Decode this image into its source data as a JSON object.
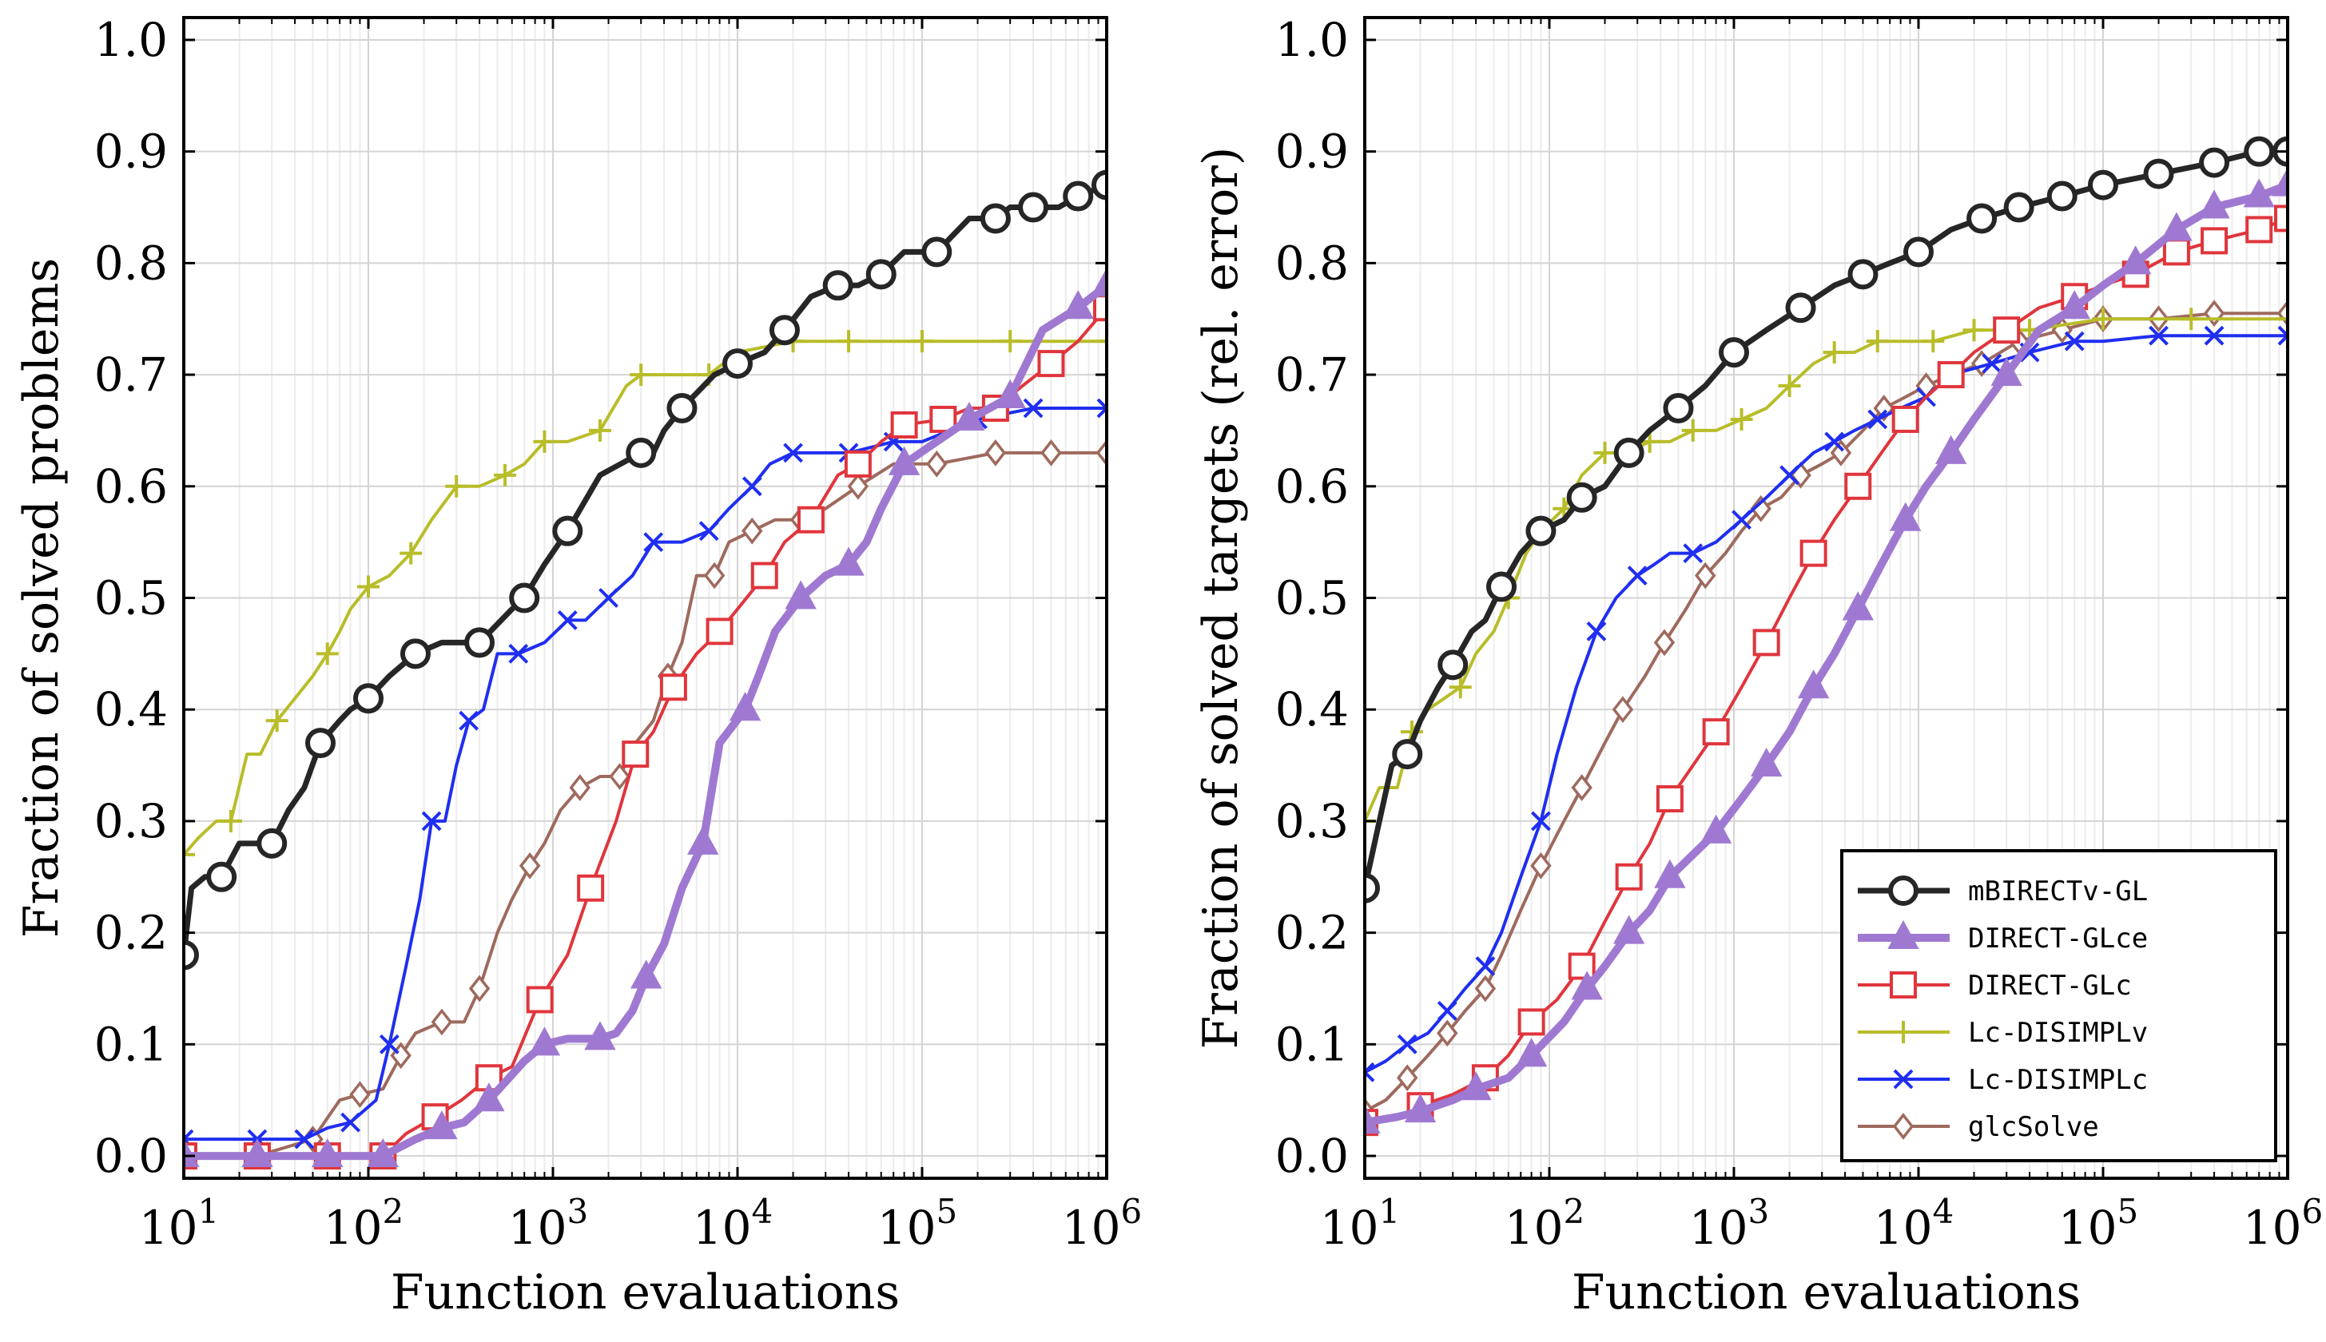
{
  "chart_data": [
    {
      "type": "line",
      "xlabel": "Function evaluations",
      "ylabel": "Fraction of solved problems",
      "xscale": "log",
      "xlim": [
        10,
        1000000
      ],
      "ylim": [
        -0.02,
        1.02
      ],
      "yticks": [
        "0.0",
        "0.1",
        "0.2",
        "0.3",
        "0.4",
        "0.5",
        "0.6",
        "0.7",
        "0.8",
        "0.9",
        "1.0"
      ],
      "xticks": [
        {
          "base": "10",
          "exp": "1"
        },
        {
          "base": "10",
          "exp": "2"
        },
        {
          "base": "10",
          "exp": "3"
        },
        {
          "base": "10",
          "exp": "4"
        },
        {
          "base": "10",
          "exp": "5"
        },
        {
          "base": "10",
          "exp": "6"
        }
      ],
      "grid": true,
      "series": [
        {
          "name": "mBIRECTv-GL",
          "x": [
            10,
            11,
            13,
            16,
            20,
            24,
            30,
            37,
            45,
            55,
            70,
            80,
            100,
            130,
            180,
            250,
            400,
            600,
            700,
            900,
            1200,
            1800,
            3000,
            3500,
            4000,
            5000,
            7500,
            10000,
            14000,
            18000,
            25000,
            35000,
            45000,
            60000,
            80000,
            120000,
            180000,
            250000,
            300000,
            400000,
            550000,
            700000,
            1000000
          ],
          "y": [
            0.18,
            0.24,
            0.25,
            0.25,
            0.28,
            0.28,
            0.28,
            0.31,
            0.33,
            0.37,
            0.39,
            0.4,
            0.41,
            0.43,
            0.45,
            0.46,
            0.46,
            0.49,
            0.5,
            0.53,
            0.56,
            0.61,
            0.63,
            0.63,
            0.65,
            0.67,
            0.7,
            0.71,
            0.72,
            0.74,
            0.77,
            0.78,
            0.78,
            0.79,
            0.81,
            0.81,
            0.84,
            0.84,
            0.85,
            0.85,
            0.85,
            0.86,
            0.87
          ]
        },
        {
          "name": "DIRECT-GLce",
          "x": [
            10,
            25,
            60,
            120,
            180,
            250,
            330,
            450,
            700,
            900,
            1200,
            1800,
            2200,
            2700,
            3200,
            4000,
            5000,
            6500,
            8000,
            11000,
            13000,
            16000,
            22000,
            30000,
            40000,
            50000,
            60000,
            80000,
            120000,
            180000,
            300000,
            450000,
            700000,
            1000000
          ],
          "y": [
            0.0,
            0.0,
            0.0,
            0.0,
            0.015,
            0.025,
            0.03,
            0.05,
            0.085,
            0.1,
            0.105,
            0.105,
            0.11,
            0.13,
            0.16,
            0.19,
            0.24,
            0.28,
            0.37,
            0.4,
            0.43,
            0.47,
            0.5,
            0.52,
            0.53,
            0.55,
            0.58,
            0.62,
            0.64,
            0.66,
            0.68,
            0.74,
            0.76,
            0.78
          ]
        },
        {
          "name": "DIRECT-GLc",
          "x": [
            10,
            25,
            60,
            120,
            160,
            230,
            320,
            450,
            600,
            850,
            1200,
            1600,
            2200,
            2800,
            3500,
            4500,
            6000,
            8000,
            10000,
            14000,
            18000,
            25000,
            35000,
            45000,
            60000,
            80000,
            130000,
            180000,
            250000,
            350000,
            500000,
            700000,
            1000000
          ],
          "y": [
            0.0,
            0.0,
            0.0,
            0.0,
            0.02,
            0.035,
            0.05,
            0.07,
            0.08,
            0.14,
            0.18,
            0.24,
            0.3,
            0.36,
            0.38,
            0.42,
            0.45,
            0.47,
            0.49,
            0.52,
            0.55,
            0.57,
            0.61,
            0.62,
            0.64,
            0.655,
            0.66,
            0.67,
            0.67,
            0.69,
            0.71,
            0.73,
            0.76
          ]
        },
        {
          "name": "Lc-DISIMPLv",
          "x": [
            10,
            12,
            15,
            18,
            22,
            26,
            32,
            40,
            50,
            60,
            70,
            80,
            100,
            130,
            170,
            220,
            300,
            400,
            550,
            700,
            900,
            1200,
            1800,
            2500,
            3000,
            4500,
            7000,
            10000,
            20000,
            40000,
            100000,
            300000,
            1000000
          ],
          "y": [
            0.27,
            0.285,
            0.3,
            0.3,
            0.36,
            0.36,
            0.39,
            0.41,
            0.43,
            0.45,
            0.47,
            0.49,
            0.51,
            0.52,
            0.54,
            0.57,
            0.6,
            0.6,
            0.61,
            0.62,
            0.64,
            0.64,
            0.65,
            0.69,
            0.7,
            0.7,
            0.7,
            0.72,
            0.73,
            0.73,
            0.73,
            0.73,
            0.73
          ]
        },
        {
          "name": "Lc-DISIMPLc",
          "x": [
            10,
            25,
            45,
            60,
            80,
            110,
            130,
            160,
            190,
            220,
            260,
            300,
            350,
            420,
            500,
            650,
            900,
            1200,
            1500,
            2000,
            2700,
            3500,
            5000,
            7000,
            9000,
            12000,
            15000,
            20000,
            40000,
            70000,
            100000,
            200000,
            400000,
            1000000
          ],
          "y": [
            0.015,
            0.015,
            0.015,
            0.025,
            0.03,
            0.05,
            0.1,
            0.17,
            0.23,
            0.3,
            0.3,
            0.35,
            0.39,
            0.4,
            0.45,
            0.45,
            0.46,
            0.48,
            0.48,
            0.5,
            0.52,
            0.55,
            0.55,
            0.56,
            0.58,
            0.6,
            0.62,
            0.63,
            0.63,
            0.64,
            0.64,
            0.66,
            0.67,
            0.67
          ]
        },
        {
          "name": "glcSolve",
          "x": [
            10,
            25,
            50,
            70,
            90,
            120,
            150,
            180,
            250,
            330,
            400,
            500,
            600,
            750,
            900,
            1100,
            1400,
            1800,
            2300,
            2800,
            3500,
            4200,
            5000,
            6000,
            7500,
            9000,
            12000,
            16000,
            22000,
            30000,
            45000,
            70000,
            120000,
            250000,
            500000,
            1000000
          ],
          "y": [
            0.0,
            0.0,
            0.015,
            0.05,
            0.055,
            0.06,
            0.09,
            0.11,
            0.12,
            0.12,
            0.15,
            0.2,
            0.23,
            0.26,
            0.28,
            0.31,
            0.33,
            0.34,
            0.34,
            0.37,
            0.39,
            0.43,
            0.46,
            0.52,
            0.52,
            0.55,
            0.56,
            0.57,
            0.57,
            0.58,
            0.6,
            0.62,
            0.62,
            0.63,
            0.63,
            0.63
          ]
        }
      ]
    },
    {
      "type": "line",
      "xlabel": "Function evaluations",
      "ylabel": "Fraction of solved targets (rel. error)",
      "xscale": "log",
      "xlim": [
        10,
        1000000
      ],
      "ylim": [
        -0.02,
        1.02
      ],
      "yticks": [
        "0.0",
        "0.1",
        "0.2",
        "0.3",
        "0.4",
        "0.5",
        "0.6",
        "0.7",
        "0.8",
        "0.9",
        "1.0"
      ],
      "xticks": [
        {
          "base": "10",
          "exp": "1"
        },
        {
          "base": "10",
          "exp": "2"
        },
        {
          "base": "10",
          "exp": "3"
        },
        {
          "base": "10",
          "exp": "4"
        },
        {
          "base": "10",
          "exp": "5"
        },
        {
          "base": "10",
          "exp": "6"
        }
      ],
      "grid": true,
      "legend_position": "bottom-right",
      "series": [
        {
          "name": "mBIRECTv-GL",
          "x": [
            10,
            12,
            14,
            17,
            20,
            25,
            30,
            38,
            45,
            55,
            70,
            90,
            120,
            150,
            200,
            270,
            350,
            500,
            700,
            1000,
            1500,
            2300,
            3500,
            5000,
            7000,
            10000,
            15000,
            22000,
            35000,
            60000,
            100000,
            200000,
            400000,
            700000,
            1000000
          ],
          "y": [
            0.24,
            0.3,
            0.35,
            0.36,
            0.39,
            0.42,
            0.44,
            0.47,
            0.48,
            0.51,
            0.54,
            0.56,
            0.57,
            0.59,
            0.6,
            0.63,
            0.65,
            0.67,
            0.69,
            0.72,
            0.74,
            0.76,
            0.78,
            0.79,
            0.8,
            0.81,
            0.83,
            0.84,
            0.85,
            0.86,
            0.87,
            0.88,
            0.89,
            0.9,
            0.9
          ]
        },
        {
          "name": "DIRECT-GLce",
          "x": [
            10,
            15,
            20,
            30,
            40,
            60,
            80,
            120,
            160,
            200,
            270,
            350,
            450,
            600,
            800,
            1100,
            1500,
            2000,
            2700,
            3500,
            4700,
            6300,
            8500,
            11000,
            15000,
            20000,
            30000,
            45000,
            70000,
            100000,
            150000,
            250000,
            400000,
            700000,
            1000000
          ],
          "y": [
            0.03,
            0.035,
            0.04,
            0.05,
            0.06,
            0.07,
            0.09,
            0.12,
            0.15,
            0.17,
            0.2,
            0.22,
            0.25,
            0.27,
            0.29,
            0.32,
            0.35,
            0.38,
            0.42,
            0.45,
            0.49,
            0.53,
            0.57,
            0.6,
            0.63,
            0.66,
            0.7,
            0.74,
            0.76,
            0.78,
            0.8,
            0.83,
            0.85,
            0.86,
            0.87
          ]
        },
        {
          "name": "DIRECT-GLc",
          "x": [
            10,
            15,
            20,
            30,
            45,
            60,
            80,
            110,
            150,
            200,
            270,
            350,
            450,
            600,
            800,
            1100,
            1500,
            2000,
            2700,
            3500,
            4700,
            6300,
            8500,
            11000,
            15000,
            20000,
            30000,
            45000,
            70000,
            100000,
            150000,
            250000,
            400000,
            700000,
            1000000
          ],
          "y": [
            0.03,
            0.035,
            0.045,
            0.055,
            0.07,
            0.09,
            0.12,
            0.14,
            0.17,
            0.21,
            0.25,
            0.28,
            0.32,
            0.35,
            0.38,
            0.42,
            0.46,
            0.5,
            0.54,
            0.57,
            0.6,
            0.63,
            0.66,
            0.68,
            0.7,
            0.72,
            0.74,
            0.76,
            0.77,
            0.78,
            0.79,
            0.81,
            0.82,
            0.83,
            0.84
          ]
        },
        {
          "name": "Lc-DISIMPLv",
          "x": [
            10,
            12,
            15,
            18,
            22,
            27,
            33,
            40,
            50,
            60,
            75,
            90,
            120,
            150,
            200,
            260,
            350,
            450,
            600,
            800,
            1100,
            1500,
            2000,
            2700,
            3500,
            4500,
            6000,
            8000,
            12000,
            20000,
            40000,
            100000,
            300000,
            1000000
          ],
          "y": [
            0.3,
            0.33,
            0.33,
            0.38,
            0.4,
            0.41,
            0.42,
            0.45,
            0.47,
            0.5,
            0.54,
            0.56,
            0.58,
            0.61,
            0.63,
            0.63,
            0.64,
            0.64,
            0.65,
            0.65,
            0.66,
            0.67,
            0.69,
            0.71,
            0.72,
            0.72,
            0.73,
            0.73,
            0.73,
            0.74,
            0.74,
            0.75,
            0.75,
            0.75
          ]
        },
        {
          "name": "Lc-DISIMPLc",
          "x": [
            10,
            13,
            17,
            22,
            28,
            35,
            45,
            55,
            70,
            90,
            110,
            140,
            180,
            230,
            300,
            370,
            450,
            600,
            800,
            1100,
            1500,
            2000,
            2700,
            3500,
            4500,
            6000,
            8000,
            11000,
            15000,
            25000,
            40000,
            70000,
            100000,
            200000,
            400000,
            1000000
          ],
          "y": [
            0.075,
            0.085,
            0.1,
            0.11,
            0.13,
            0.15,
            0.17,
            0.2,
            0.25,
            0.3,
            0.36,
            0.42,
            0.47,
            0.5,
            0.52,
            0.53,
            0.54,
            0.54,
            0.55,
            0.57,
            0.59,
            0.61,
            0.63,
            0.64,
            0.65,
            0.66,
            0.67,
            0.68,
            0.7,
            0.71,
            0.72,
            0.73,
            0.73,
            0.735,
            0.735,
            0.735
          ]
        },
        {
          "name": "glcSolve",
          "x": [
            10,
            13,
            17,
            22,
            28,
            35,
            45,
            55,
            70,
            90,
            120,
            150,
            200,
            250,
            330,
            420,
            550,
            700,
            900,
            1100,
            1400,
            1800,
            2300,
            3000,
            3800,
            5000,
            6500,
            8500,
            11000,
            15000,
            22000,
            35000,
            60000,
            100000,
            200000,
            400000,
            1000000
          ],
          "y": [
            0.04,
            0.05,
            0.07,
            0.09,
            0.11,
            0.13,
            0.15,
            0.18,
            0.22,
            0.26,
            0.3,
            0.33,
            0.37,
            0.4,
            0.43,
            0.46,
            0.49,
            0.52,
            0.54,
            0.56,
            0.58,
            0.59,
            0.61,
            0.62,
            0.63,
            0.65,
            0.67,
            0.68,
            0.69,
            0.7,
            0.71,
            0.73,
            0.74,
            0.75,
            0.75,
            0.755,
            0.755
          ]
        }
      ]
    }
  ],
  "styles": {
    "mBIRECTv-GL": {
      "color": "#262626",
      "marker": "circle",
      "width": 7
    },
    "DIRECT-GLce": {
      "color": "#9f79d1",
      "marker": "triangle",
      "width": 10
    },
    "DIRECT-GLc": {
      "color": "#e0353c",
      "marker": "square",
      "width": 4
    },
    "Lc-DISIMPLv": {
      "color": "#b8bd29",
      "marker": "plus",
      "width": 4
    },
    "Lc-DISIMPLc": {
      "color": "#1f2ef0",
      "marker": "x",
      "width": 4
    },
    "glcSolve": {
      "color": "#9e6a5e",
      "marker": "diamond",
      "width": 4
    }
  }
}
